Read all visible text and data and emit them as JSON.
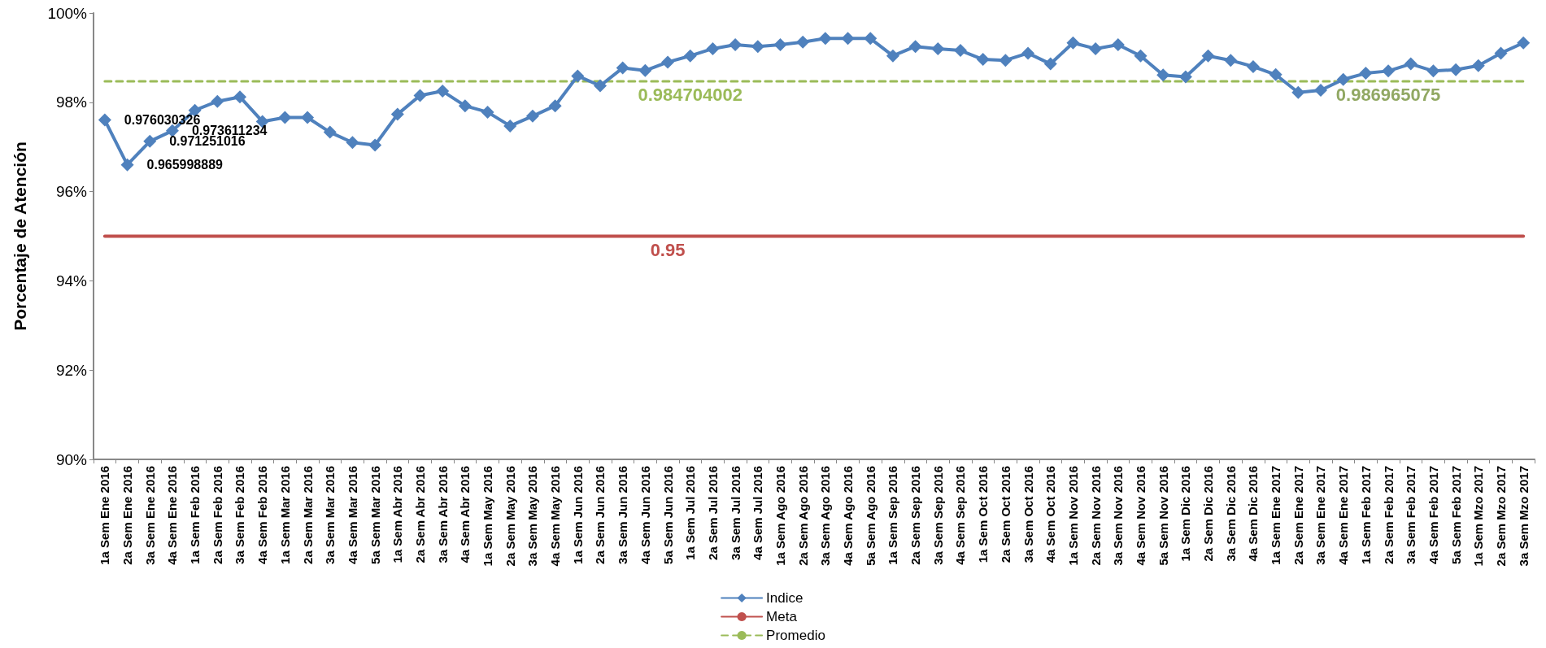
{
  "chart_data": {
    "type": "line",
    "ylabel": "Porcentaje de Atención",
    "categories": [
      "1a Sem Ene 2016",
      "2a Sem Ene 2016",
      "3a Sem Ene 2016",
      "4a Sem Ene 2016",
      "1a Sem Feb 2016",
      "2a Sem Feb 2016",
      "3a Sem Feb 2016",
      "4a Sem Feb 2016",
      "1a Sem Mar 2016",
      "2a Sem Mar 2016",
      "3a Sem Mar 2016",
      "4a Sem Mar 2016",
      "5a Sem Mar 2016",
      "1a Sem Abr 2016",
      "2a Sem Abr 2016",
      "3a Sem Abr 2016",
      "4a Sem Abr 2016",
      "1a Sem May 2016",
      "2a Sem May 2016",
      "3a Sem May 2016",
      "4a Sem May 2016",
      "1a Sem Jun 2016",
      "2a Sem Jun 2016",
      "3a Sem Jun 2016",
      "4a Sem Jun 2016",
      "5a Sem Jun 2016",
      "1a Sem Jul 2016",
      "2a Sem Jul 2016",
      "3a Sem Jul 2016",
      "4a Sem Jul 2016",
      "1a Sem Ago 2016",
      "2a Sem Ago 2016",
      "3a Sem Ago 2016",
      "4a Sem Ago 2016",
      "5a Sem Ago 2016",
      "1a Sem Sep 2016",
      "2a Sem Sep 2016",
      "3a Sem Sep 2016",
      "4a Sem Sep 2016",
      "1a Sem Oct 2016",
      "2a Sem Oct 2016",
      "3a Sem Oct 2016",
      "4a Sem Oct 2016",
      "1a Sem Nov 2016",
      "2a Sem Nov 2016",
      "3a Sem Nov 2016",
      "4a Sem Nov 2016",
      "5a Sem Nov 2016",
      "1a Sem Dic 2016",
      "2a Sem Dic 2016",
      "3a Sem Dic 2016",
      "4a Sem Dic 2016",
      "1a Sem Ene 2017",
      "2a Sem Ene 2017",
      "3a Sem Ene 2017",
      "4a Sem Ene 2017",
      "1a Sem Feb 2017",
      "2a Sem Feb 2017",
      "3a Sem Feb 2017",
      "4a Sem Feb 2017",
      "5a Sem Feb 2017",
      "1a Sem Mzo 2017",
      "2a Sem Mzo 2017",
      "3a Sem Mzo 2017"
    ],
    "series": [
      {
        "name": "Indice",
        "color": "#4f81bd",
        "marker": "diamond",
        "line_style": "solid",
        "values": [
          0.976030326,
          0.965998889,
          0.971251016,
          0.973611234,
          0.9782,
          0.9802,
          0.9812,
          0.9757,
          0.9766,
          0.9766,
          0.9733,
          0.971,
          0.9704,
          0.9773,
          0.9815,
          0.9825,
          0.9792,
          0.9778,
          0.9747,
          0.9769,
          0.9792,
          0.9859,
          0.9837,
          0.9877,
          0.9871,
          0.989,
          0.9904,
          0.992,
          0.9929,
          0.9925,
          0.9929,
          0.9935,
          0.9943,
          0.9943,
          0.9943,
          0.9904,
          0.9925,
          0.992,
          0.9916,
          0.9896,
          0.9894,
          0.991,
          0.9886,
          0.9933,
          0.992,
          0.9929,
          0.9904,
          0.9861,
          0.9857,
          0.9904,
          0.9894,
          0.988,
          0.9862,
          0.9822,
          0.9827,
          0.9851,
          0.9865,
          0.987,
          0.9886,
          0.987,
          0.9873,
          0.9882,
          0.991,
          0.9933
        ],
        "value_labels": [
          "0.976030326",
          "0.965998889",
          "0.971251016",
          "0.973611234",
          null,
          null,
          null,
          null,
          null,
          null,
          null,
          null,
          null,
          null,
          null,
          null,
          null,
          null,
          null,
          null,
          null,
          null,
          null,
          null,
          null,
          null,
          null,
          null,
          null,
          null,
          null,
          null,
          null,
          null,
          null,
          null,
          null,
          null,
          null,
          null,
          null,
          null,
          null,
          null,
          null,
          null,
          null,
          null,
          null,
          null,
          null,
          null,
          null,
          null,
          null,
          null,
          null,
          null,
          null,
          null,
          null,
          null,
          null,
          null
        ]
      },
      {
        "name": "Meta",
        "color": "#c0504d",
        "marker": "none",
        "line_style": "solid",
        "values": [
          0.95,
          0.95,
          0.95,
          0.95,
          0.95,
          0.95,
          0.95,
          0.95,
          0.95,
          0.95,
          0.95,
          0.95,
          0.95,
          0.95,
          0.95,
          0.95,
          0.95,
          0.95,
          0.95,
          0.95,
          0.95,
          0.95,
          0.95,
          0.95,
          0.95,
          0.95,
          0.95,
          0.95,
          0.95,
          0.95,
          0.95,
          0.95,
          0.95,
          0.95,
          0.95,
          0.95,
          0.95,
          0.95,
          0.95,
          0.95,
          0.95,
          0.95,
          0.95,
          0.95,
          0.95,
          0.95,
          0.95,
          0.95,
          0.95,
          0.95,
          0.95,
          0.95,
          0.95,
          0.95,
          0.95,
          0.95,
          0.95,
          0.95,
          0.95,
          0.95,
          0.95,
          0.95,
          0.95,
          0.95
        ],
        "value_labels": [
          null,
          null,
          null,
          null,
          null,
          null,
          null,
          null,
          null,
          null,
          null,
          null,
          null,
          null,
          null,
          null,
          null,
          null,
          null,
          null,
          null,
          null,
          null,
          null,
          null,
          "0.95",
          null,
          null,
          null,
          null,
          null,
          null,
          null,
          null,
          null,
          null,
          null,
          null,
          null,
          null,
          null,
          null,
          null,
          null,
          null,
          null,
          null,
          null,
          null,
          null,
          null,
          null,
          null,
          null,
          null,
          null,
          null,
          null,
          null,
          null,
          null,
          null,
          null,
          null
        ]
      },
      {
        "name": "Promedio",
        "color": "#9bbb59",
        "marker": "none",
        "line_style": "dashed",
        "values": [
          0.984704002,
          0.984704002,
          0.984704002,
          0.984704002,
          0.984704002,
          0.984704002,
          0.984704002,
          0.984704002,
          0.984704002,
          0.984704002,
          0.984704002,
          0.984704002,
          0.984704002,
          0.984704002,
          0.984704002,
          0.984704002,
          0.984704002,
          0.984704002,
          0.984704002,
          0.984704002,
          0.984704002,
          0.984704002,
          0.984704002,
          0.984704002,
          0.984704002,
          0.984704002,
          0.984704002,
          0.984704002,
          0.984704002,
          0.984704002,
          0.984704002,
          0.984704002,
          0.984704002,
          0.984704002,
          0.984704002,
          0.984704002,
          0.984704002,
          0.984704002,
          0.984704002,
          0.984704002,
          0.984704002,
          0.984704002,
          0.984704002,
          0.984704002,
          0.984704002,
          0.984704002,
          0.984704002,
          0.984704002,
          0.984704002,
          0.984704002,
          0.984704002,
          0.984704002,
          0.984704002,
          0.984704002,
          0.984704002,
          0.984704002,
          0.984704002,
          0.984704002,
          0.984704002,
          0.984704002,
          0.984704002,
          0.984704002,
          0.984704002,
          0.984704002
        ],
        "value_labels": [
          null,
          null,
          null,
          null,
          null,
          null,
          null,
          null,
          null,
          null,
          null,
          null,
          null,
          null,
          null,
          null,
          null,
          null,
          null,
          null,
          null,
          null,
          null,
          null,
          null,
          null,
          "0.984704002",
          null,
          null,
          null,
          null,
          null,
          null,
          null,
          null,
          null,
          null,
          null,
          null,
          null,
          null,
          null,
          null,
          null,
          null,
          null,
          null,
          null,
          null,
          null,
          null,
          null,
          null,
          null,
          null,
          null,
          null,
          null,
          null,
          null,
          null,
          null,
          null,
          null
        ]
      }
    ],
    "annotations": [
      {
        "text": "0.986965075",
        "x": "2a Sem Feb 2017",
        "y": 0.9847
      }
    ],
    "ylim": [
      0.9,
      1.0
    ],
    "yticks": [
      {
        "value": 0.9,
        "label": "90%"
      },
      {
        "value": 0.92,
        "label": "92%"
      },
      {
        "value": 0.94,
        "label": "94%"
      },
      {
        "value": 0.96,
        "label": "96%"
      },
      {
        "value": 0.98,
        "label": "98%"
      },
      {
        "value": 1.0,
        "label": "100%"
      }
    ],
    "legend": "bottom"
  }
}
